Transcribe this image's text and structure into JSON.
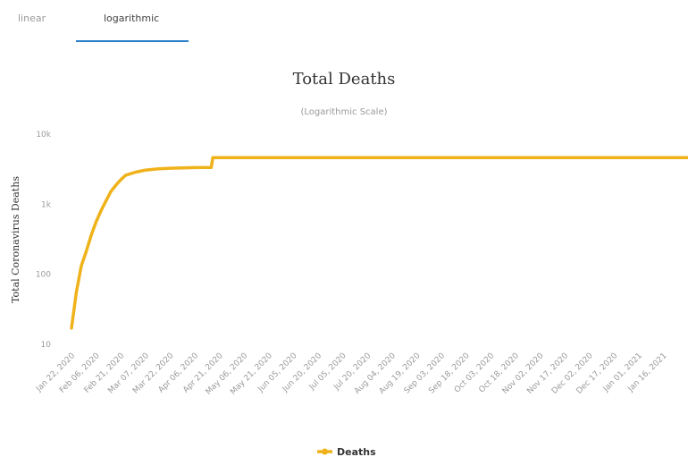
{
  "tabs": [
    {
      "label": "linear",
      "active": false
    },
    {
      "label": "logarithmic",
      "active": true
    }
  ],
  "colors": {
    "accent": "#2b7fc9",
    "series": "#f0b21a",
    "text": "#333333",
    "muted": "#9a9a9a"
  },
  "chart_data": {
    "type": "line",
    "title": "Total Deaths",
    "subtitle": "(Logarithmic Scale)",
    "ylabel": "Total Coronavirus Deaths",
    "xlabel": "",
    "yscale": "log",
    "ylim": [
      10,
      10000
    ],
    "yticks": [
      {
        "value": 10,
        "label": "10"
      },
      {
        "value": 100,
        "label": "100"
      },
      {
        "value": 1000,
        "label": "1k"
      },
      {
        "value": 10000,
        "label": "10k"
      }
    ],
    "xlim": [
      "2020-01-22",
      "2021-01-31"
    ],
    "xticks": [
      {
        "date": "2020-01-22",
        "label": "Jan 22, 2020"
      },
      {
        "date": "2020-02-06",
        "label": "Feb 06, 2020"
      },
      {
        "date": "2020-02-21",
        "label": "Feb 21, 2020"
      },
      {
        "date": "2020-03-07",
        "label": "Mar 07, 2020"
      },
      {
        "date": "2020-03-22",
        "label": "Mar 22, 2020"
      },
      {
        "date": "2020-04-06",
        "label": "Apr 06, 2020"
      },
      {
        "date": "2020-04-21",
        "label": "Apr 21, 2020"
      },
      {
        "date": "2020-05-06",
        "label": "May 06, 2020"
      },
      {
        "date": "2020-05-21",
        "label": "May 21, 2020"
      },
      {
        "date": "2020-06-05",
        "label": "Jun 05, 2020"
      },
      {
        "date": "2020-06-20",
        "label": "Jun 20, 2020"
      },
      {
        "date": "2020-07-05",
        "label": "Jul 05, 2020"
      },
      {
        "date": "2020-07-20",
        "label": "Jul 20, 2020"
      },
      {
        "date": "2020-08-04",
        "label": "Aug 04, 2020"
      },
      {
        "date": "2020-08-19",
        "label": "Aug 19, 2020"
      },
      {
        "date": "2020-09-03",
        "label": "Sep 03, 2020"
      },
      {
        "date": "2020-09-18",
        "label": "Sep 18, 2020"
      },
      {
        "date": "2020-10-03",
        "label": "Oct 03, 2020"
      },
      {
        "date": "2020-10-18",
        "label": "Oct 18, 2020"
      },
      {
        "date": "2020-11-02",
        "label": "Nov 02, 2020"
      },
      {
        "date": "2020-11-17",
        "label": "Nov 17, 2020"
      },
      {
        "date": "2020-12-02",
        "label": "Dec 02, 2020"
      },
      {
        "date": "2020-12-17",
        "label": "Dec 17, 2020"
      },
      {
        "date": "2021-01-01",
        "label": "Jan 01, 2021"
      },
      {
        "date": "2021-01-16",
        "label": "Jan 16, 2021"
      }
    ],
    "series": [
      {
        "name": "Deaths",
        "color": "#f0b21a",
        "points": [
          {
            "x": "2020-01-22",
            "y": 17
          },
          {
            "x": "2020-01-25",
            "y": 56
          },
          {
            "x": "2020-01-28",
            "y": 132
          },
          {
            "x": "2020-01-31",
            "y": 213
          },
          {
            "x": "2020-02-03",
            "y": 361
          },
          {
            "x": "2020-02-06",
            "y": 563
          },
          {
            "x": "2020-02-09",
            "y": 811
          },
          {
            "x": "2020-02-12",
            "y": 1113
          },
          {
            "x": "2020-02-15",
            "y": 1526
          },
          {
            "x": "2020-02-18",
            "y": 1868
          },
          {
            "x": "2020-02-21",
            "y": 2236
          },
          {
            "x": "2020-02-24",
            "y": 2595
          },
          {
            "x": "2020-03-01",
            "y": 2870
          },
          {
            "x": "2020-03-07",
            "y": 3070
          },
          {
            "x": "2020-03-15",
            "y": 3199
          },
          {
            "x": "2020-03-22",
            "y": 3261
          },
          {
            "x": "2020-04-06",
            "y": 3331
          },
          {
            "x": "2020-04-16",
            "y": 3342
          },
          {
            "x": "2020-04-17",
            "y": 4632
          },
          {
            "x": "2020-04-21",
            "y": 4632
          },
          {
            "x": "2020-05-21",
            "y": 4634
          },
          {
            "x": "2020-07-05",
            "y": 4634
          },
          {
            "x": "2020-09-18",
            "y": 4634
          },
          {
            "x": "2020-12-02",
            "y": 4634
          },
          {
            "x": "2021-01-31",
            "y": 4636
          }
        ]
      }
    ],
    "legend": {
      "position": "bottom-center"
    },
    "grid": false
  }
}
